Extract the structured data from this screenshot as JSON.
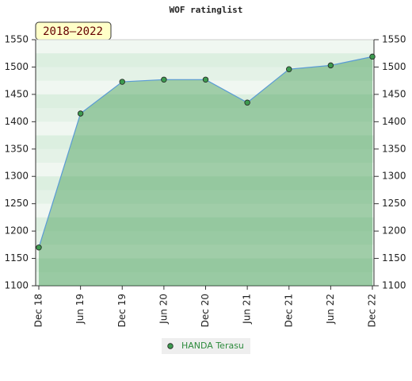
{
  "chart_data": {
    "type": "area",
    "title": "WOF ratinglist",
    "annotation": "2018–2022",
    "categories": [
      "Dec 18",
      "Jun 19",
      "Dec 19",
      "Jun 20",
      "Dec 20",
      "Jun 21",
      "Dec 21",
      "Jun 22",
      "Dec 22"
    ],
    "series": [
      {
        "name": "HANDA Terasu",
        "color": "#3d9a4f",
        "values": [
          1170,
          1415,
          1473,
          1477,
          1477,
          1435,
          1496,
          1503,
          1519
        ]
      }
    ],
    "ylim": [
      1100,
      1550
    ],
    "yticks": [
      1100,
      1150,
      1200,
      1250,
      1300,
      1350,
      1400,
      1450,
      1500,
      1550
    ],
    "y2lim": [
      1100,
      1550
    ],
    "y2ticks": [
      1100,
      1150,
      1200,
      1250,
      1300,
      1350,
      1400,
      1450,
      1500,
      1550
    ]
  }
}
